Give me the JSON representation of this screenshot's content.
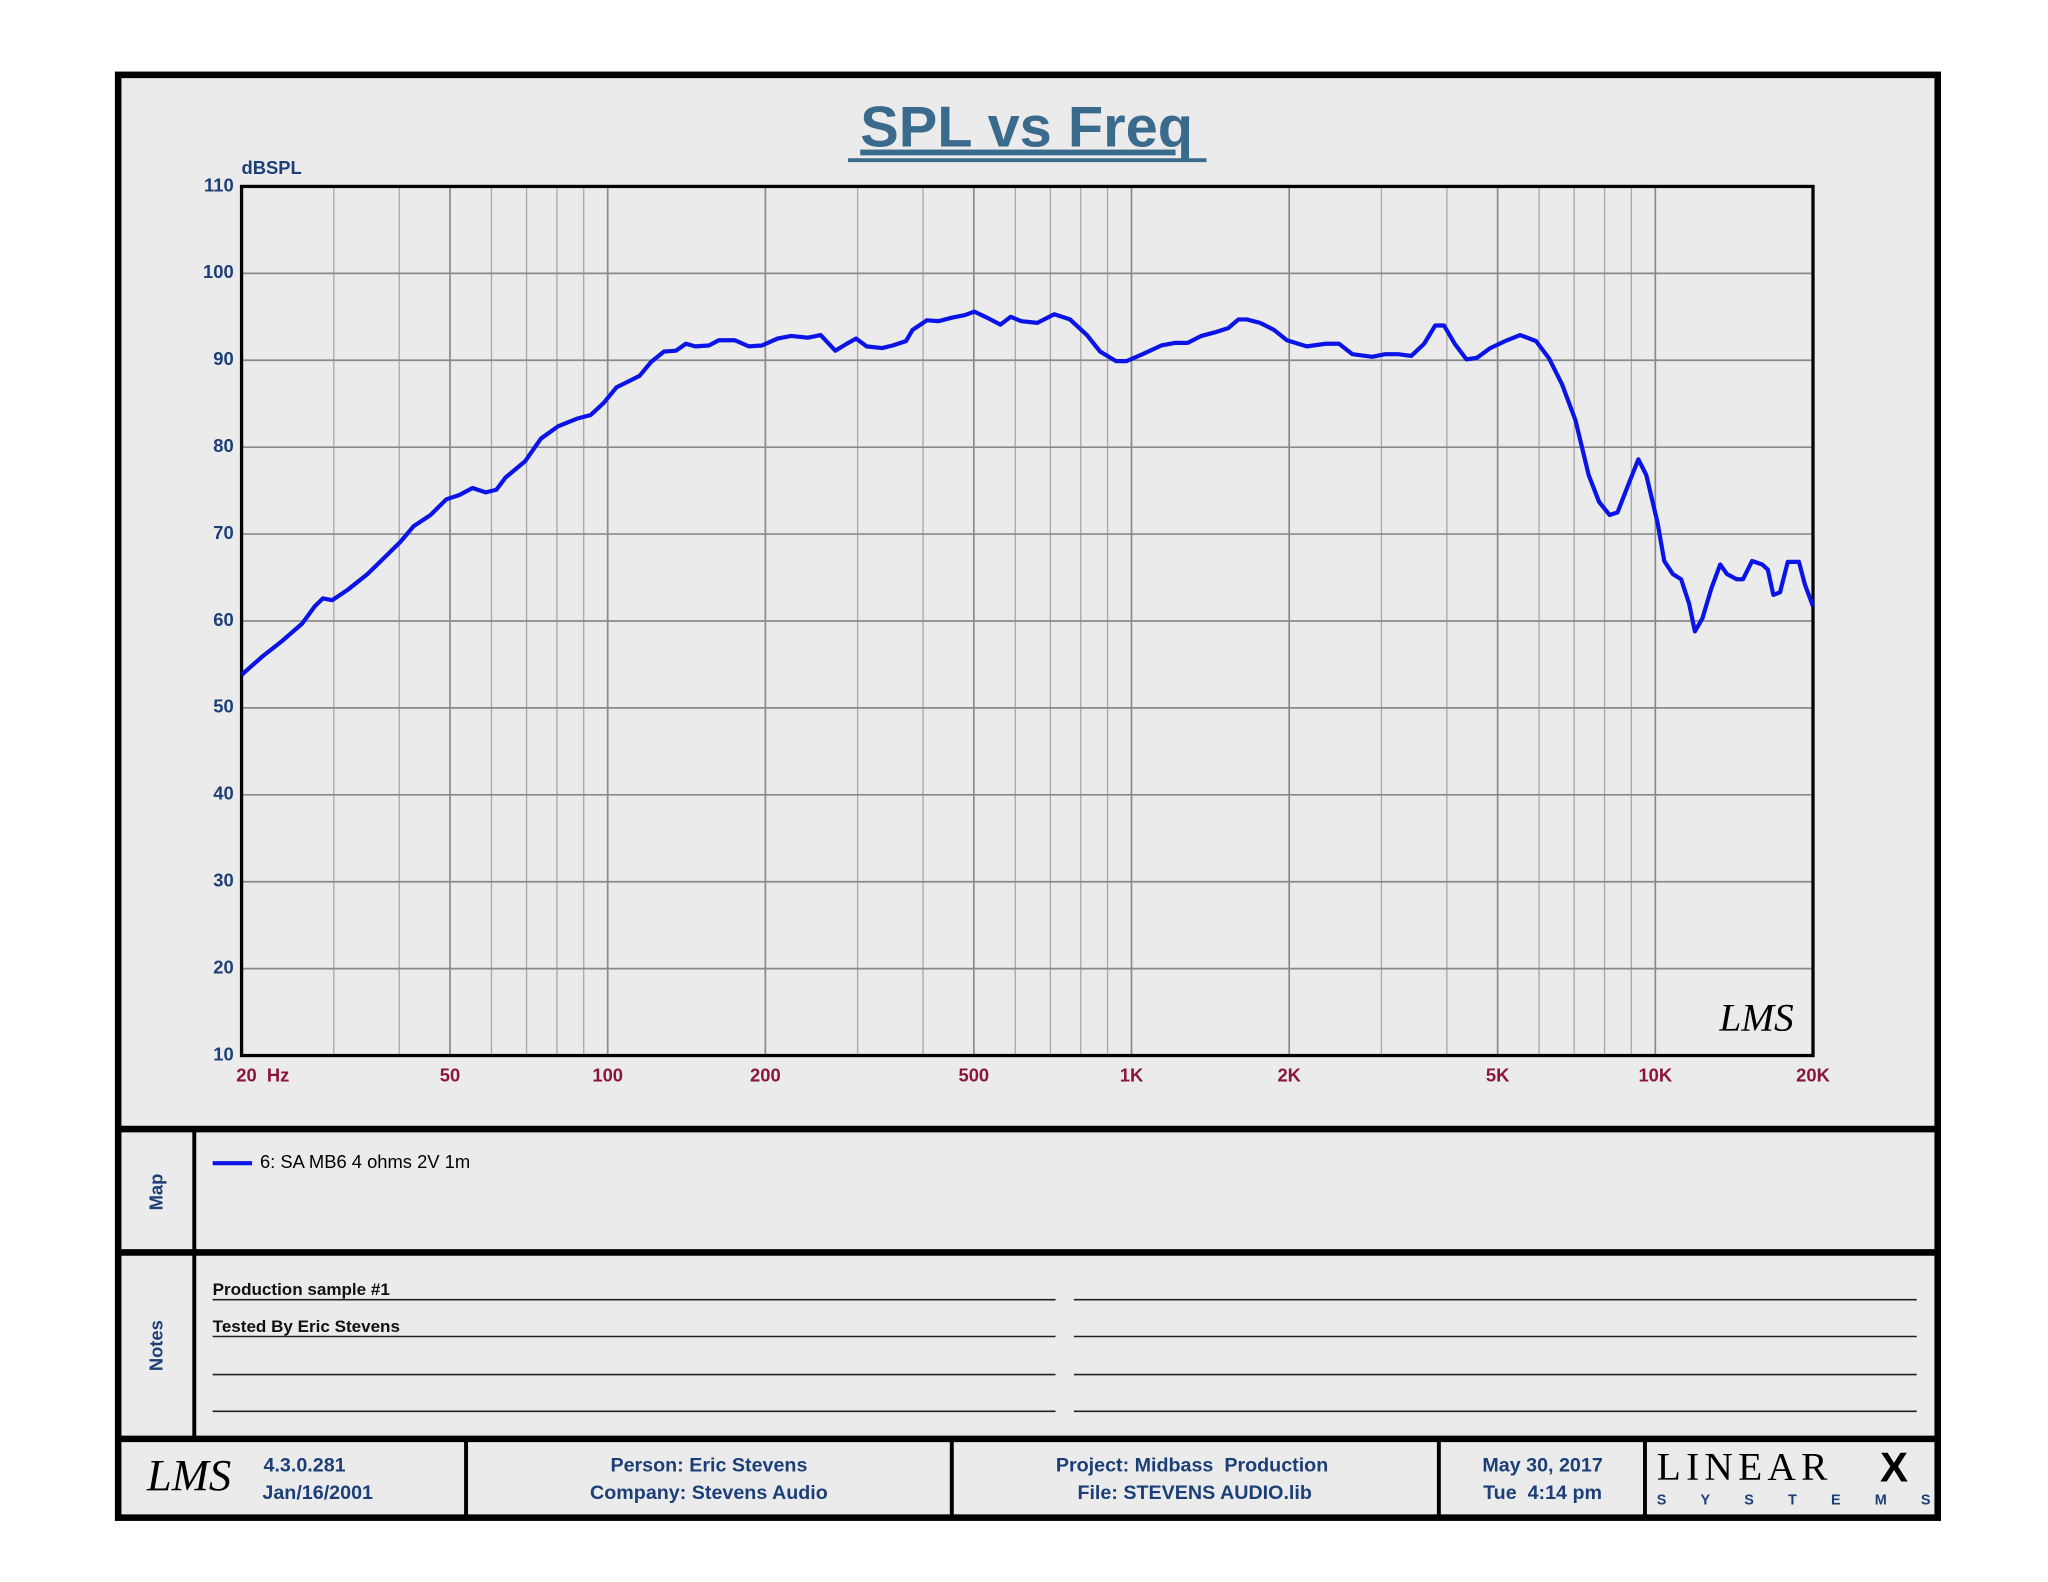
{
  "chart_data": {
    "type": "line",
    "title": "SPL vs Freq",
    "y_label": "dBSPL",
    "log_x": true,
    "grid": true,
    "xlim": [
      20,
      20000
    ],
    "ylim": [
      10,
      110
    ],
    "xticks": [
      {
        "value": 20,
        "label": "20  Hz"
      },
      50,
      100,
      200,
      500,
      {
        "value": 1000,
        "label": "1K"
      },
      {
        "value": 2000,
        "label": "2K"
      },
      {
        "value": 5000,
        "label": "5K"
      },
      {
        "value": 10000,
        "label": "10K"
      },
      {
        "value": 20000,
        "label": "20K"
      }
    ],
    "xminor_ticks": [
      30,
      40,
      60,
      70,
      80,
      90,
      300,
      400,
      600,
      700,
      800,
      900,
      3000,
      4000,
      6000,
      7000,
      8000,
      9000
    ],
    "yticks": [
      10,
      20,
      30,
      40,
      50,
      60,
      70,
      80,
      90,
      100,
      110
    ],
    "watermark": "LMS",
    "series": [
      {
        "name": "6: SA MB6 4 ohms 2V 1m",
        "color": "#0a14e6",
        "x": [
          20,
          21.9,
          23.9,
          26.1,
          27.6,
          28.6,
          29.8,
          31.9,
          34.8,
          36.9,
          40.2,
          42.6,
          45.9,
          49.2,
          52.1,
          55.2,
          58.5,
          61.3,
          63.8,
          69.6,
          74.6,
          80.4,
          87.6,
          92.8,
          98.3,
          104,
          109,
          115,
          121,
          128,
          135,
          141,
          147,
          156,
          163,
          175,
          186,
          197,
          211,
          224,
          241,
          255,
          272,
          286,
          298,
          312,
          334,
          350,
          371,
          382,
          407,
          428,
          454,
          481,
          501,
          530,
          562,
          588,
          616,
          661,
          712,
          763,
          822,
          871,
          934,
          978,
          1050,
          1140,
          1210,
          1280,
          1360,
          1440,
          1530,
          1600,
          1660,
          1760,
          1870,
          1980,
          2160,
          2350,
          2490,
          2640,
          2880,
          3050,
          3230,
          3420,
          3620,
          3800,
          3950,
          4140,
          4360,
          4570,
          4840,
          5210,
          5520,
          5920,
          6270,
          6640,
          7040,
          7460,
          7810,
          8180,
          8470,
          8870,
          9280,
          9610,
          10100,
          10400,
          10800,
          11200,
          11600,
          11900,
          12300,
          12800,
          13300,
          13700,
          14300,
          14700,
          15300,
          16000,
          16400,
          16800,
          17300,
          17900,
          18800,
          19300,
          20000
        ],
        "values": [
          53.8,
          55.9,
          57.7,
          59.7,
          61.7,
          62.6,
          62.4,
          63.6,
          65.4,
          66.9,
          69.1,
          70.9,
          72.2,
          74.0,
          74.5,
          75.3,
          74.8,
          75.1,
          76.5,
          78.4,
          81.0,
          82.4,
          83.3,
          83.7,
          85.1,
          86.9,
          87.5,
          88.2,
          89.8,
          91.0,
          91.1,
          91.9,
          91.6,
          91.7,
          92.3,
          92.3,
          91.6,
          91.7,
          92.5,
          92.8,
          92.6,
          92.9,
          91.1,
          91.9,
          92.5,
          91.6,
          91.4,
          91.7,
          92.2,
          93.5,
          94.6,
          94.5,
          94.9,
          95.2,
          95.6,
          94.9,
          94.1,
          95.0,
          94.5,
          94.3,
          95.3,
          94.7,
          92.9,
          91.0,
          89.9,
          89.9,
          90.7,
          91.7,
          92.0,
          92.0,
          92.8,
          93.2,
          93.7,
          94.7,
          94.7,
          94.3,
          93.5,
          92.3,
          91.6,
          91.9,
          91.9,
          90.7,
          90.4,
          90.7,
          90.7,
          90.5,
          91.9,
          94.0,
          94.0,
          91.9,
          90.1,
          90.3,
          91.4,
          92.3,
          92.9,
          92.2,
          90.2,
          87.2,
          83.1,
          76.8,
          73.7,
          72.2,
          72.5,
          75.6,
          78.6,
          76.8,
          71.3,
          66.9,
          65.4,
          64.8,
          62.0,
          58.8,
          60.3,
          63.8,
          66.5,
          65.4,
          64.8,
          64.8,
          66.9,
          66.5,
          65.9,
          63.0,
          63.3,
          66.8,
          66.8,
          64.2,
          61.7
        ]
      }
    ]
  },
  "map": {
    "label": "Map"
  },
  "notes": {
    "label": "Notes",
    "lines": [
      "Production sample #1",
      "Tested By Eric Stevens"
    ]
  },
  "footer": {
    "logo": "LMS",
    "version": "4.3.0.281",
    "version_date": "Jan/16/2001",
    "person": "Person: Eric Stevens",
    "company": "Company: Stevens Audio",
    "project": "Project: Midbass  Production",
    "file": "File: STEVENS AUDIO.lib",
    "date": "May 30, 2017",
    "time": "Tue  4:14 pm",
    "brand": "LINEAR",
    "brand_mark": "X",
    "brand_sub": "SYSTEMS"
  }
}
